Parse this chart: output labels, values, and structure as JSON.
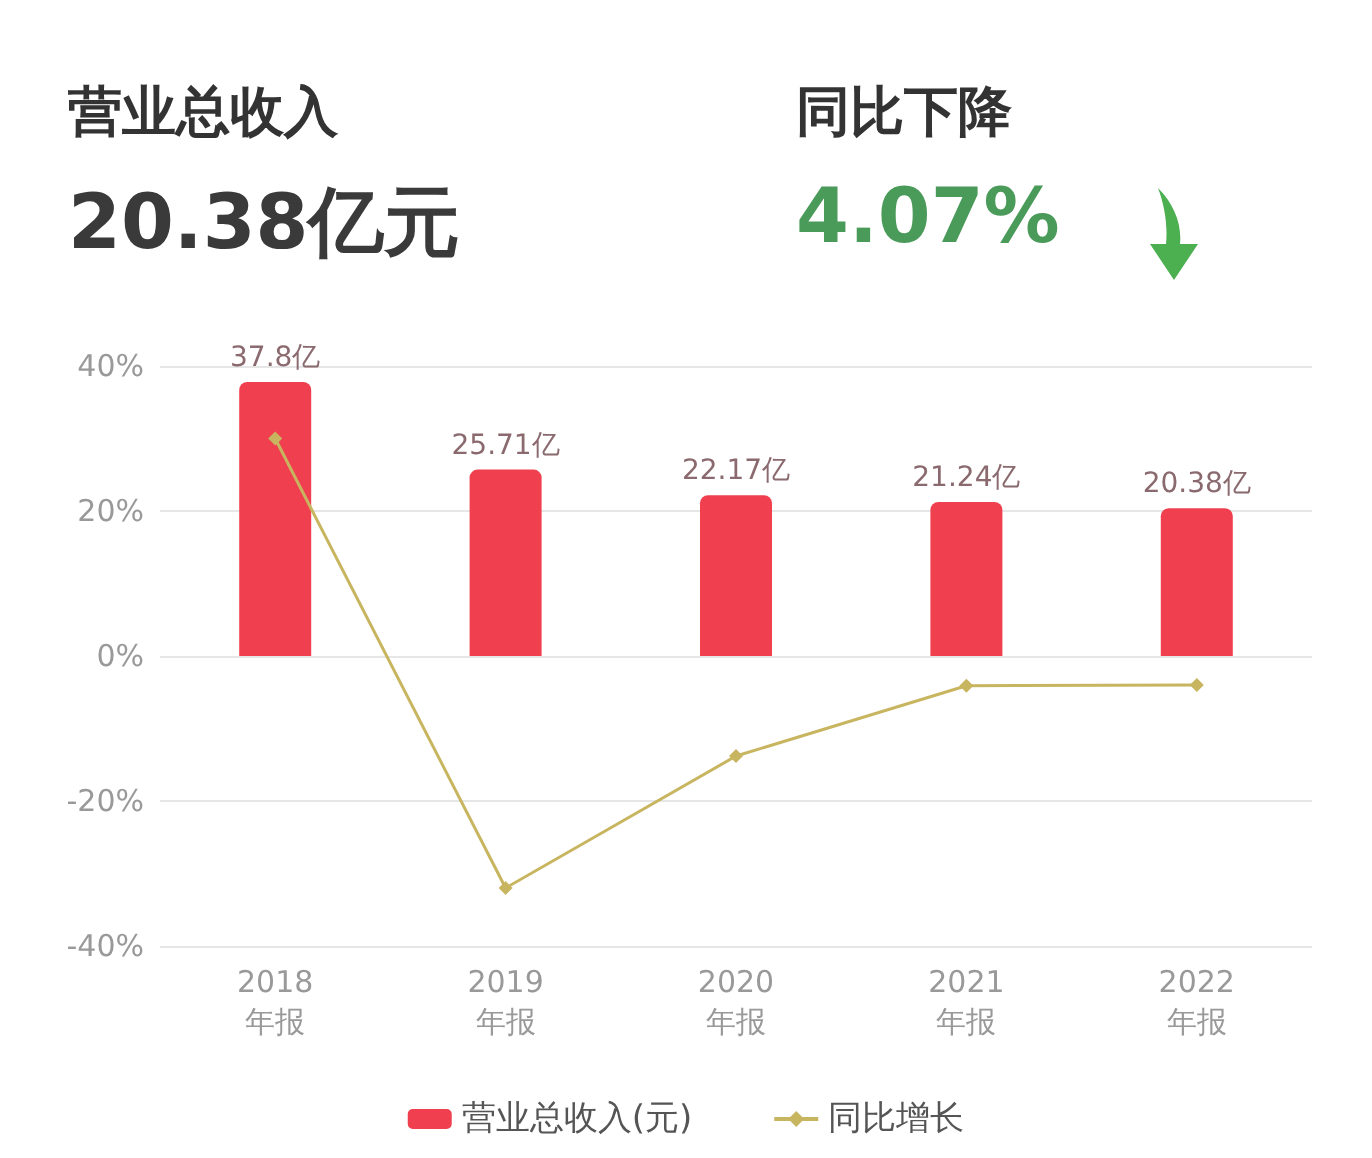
{
  "chart_data": {
    "type": "bar",
    "annotations": [
      "营业总收入",
      "20.38亿元",
      "同比下降",
      "4.07%"
    ],
    "categories": [
      "2018\n年报",
      "2019\n年报",
      "2020\n年报",
      "2021\n年报",
      "2022\n年报"
    ],
    "series": [
      {
        "name": "营业总收入(元)",
        "color": "#f0404f",
        "values": [
          37.8,
          25.71,
          22.17,
          21.24,
          20.38
        ],
        "value_labels": [
          "37.8亿",
          "25.71亿",
          "22.17亿",
          "21.24亿",
          "20.38亿"
        ]
      },
      {
        "name": "同比增长",
        "type": "line",
        "color": "#c8b560",
        "values": [
          30,
          -32,
          -13.8,
          -4.1,
          -4
        ],
        "marker": "diamond"
      }
    ],
    "ylim": [
      -40,
      40
    ],
    "yticks": [
      {
        "value": -40,
        "label": "-40%"
      },
      {
        "value": -20,
        "label": "-20%"
      },
      {
        "value": 0,
        "label": "0%"
      },
      {
        "value": 20,
        "label": "20%"
      },
      {
        "value": 40,
        "label": "40%"
      }
    ],
    "grid": "y",
    "legend": "bottom"
  }
}
